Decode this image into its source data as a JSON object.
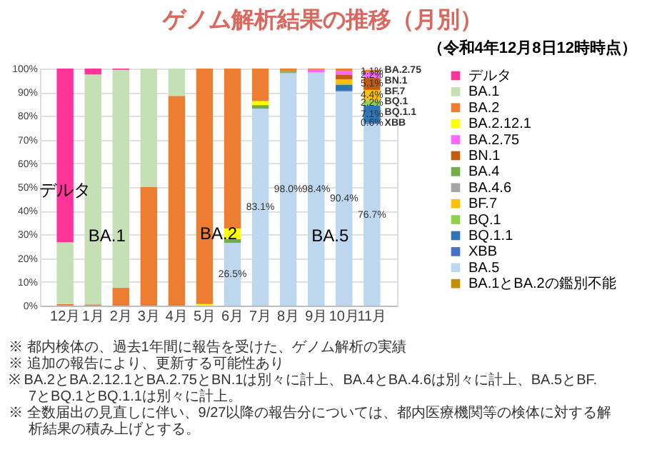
{
  "chart_data": {
    "type": "bar",
    "stacked": true,
    "title": "ゲノム解析結果の推移（月別）",
    "subtitle": "（令和4年12月8日12時時点）",
    "categories": [
      "12月",
      "1月",
      "2月",
      "3月",
      "4月",
      "5月",
      "6月",
      "7月",
      "8月",
      "9月",
      "10月",
      "11月"
    ],
    "ylim": [
      0,
      100
    ],
    "yticks": [
      {
        "value": 0,
        "label": "0%"
      },
      {
        "value": 10,
        "label": "10%"
      },
      {
        "value": 20,
        "label": "20%"
      },
      {
        "value": 30,
        "label": "30%"
      },
      {
        "value": 40,
        "label": "40%"
      },
      {
        "value": 50,
        "label": "50%"
      },
      {
        "value": 60,
        "label": "60%"
      },
      {
        "value": 70,
        "label": "70%"
      },
      {
        "value": 80,
        "label": "80%"
      },
      {
        "value": 90,
        "label": "90%"
      },
      {
        "value": 100,
        "label": "100%"
      }
    ],
    "grid": "y",
    "legend": "right",
    "series": [
      {
        "name": "BA.1とBA.2の鑑別不能",
        "color": "#bf9000",
        "values": [
          null,
          null,
          null,
          null,
          null,
          null,
          null,
          null,
          null,
          null,
          null,
          null
        ]
      },
      {
        "name": "BA.5",
        "color": "#bdd7ee",
        "values": [
          null,
          null,
          null,
          null,
          null,
          null,
          26.5,
          83.1,
          98.0,
          98.4,
          90.4,
          76.7
        ],
        "value_labels": [
          null,
          null,
          null,
          null,
          null,
          null,
          "26.5%",
          "83.1%",
          "98.0%",
          "98.4%",
          "90.4%",
          "76.7%"
        ]
      },
      {
        "name": "XBB",
        "color": "#4472c4",
        "values": [
          null,
          null,
          null,
          null,
          null,
          null,
          null,
          null,
          null,
          null,
          0.3,
          0.6
        ],
        "value_labels": [
          null,
          null,
          null,
          null,
          null,
          null,
          null,
          null,
          null,
          null,
          null,
          "0.6%"
        ]
      },
      {
        "name": "BQ.1.1",
        "color": "#2e75b6",
        "values": [
          null,
          null,
          null,
          null,
          null,
          null,
          null,
          null,
          null,
          null,
          2.5,
          7.1
        ],
        "value_labels": [
          null,
          null,
          null,
          null,
          null,
          null,
          null,
          null,
          null,
          null,
          null,
          "7.1%"
        ]
      },
      {
        "name": "BQ.1",
        "color": "#92d050",
        "values": [
          null,
          null,
          null,
          null,
          null,
          null,
          null,
          null,
          null,
          null,
          0.5,
          2.2
        ],
        "value_labels": [
          null,
          null,
          null,
          null,
          null,
          null,
          null,
          null,
          null,
          null,
          null,
          "2.2%"
        ]
      },
      {
        "name": "BF.7",
        "color": "#ffc000",
        "values": [
          null,
          null,
          null,
          null,
          null,
          null,
          null,
          null,
          null,
          null,
          1.8,
          4.4
        ],
        "value_labels": [
          null,
          null,
          null,
          null,
          null,
          null,
          null,
          null,
          null,
          null,
          null,
          "4.4%"
        ]
      },
      {
        "name": "BA.4.6",
        "color": "#a5a5a5",
        "values": [
          null,
          null,
          null,
          null,
          null,
          null,
          null,
          null,
          0.5,
          null,
          null,
          null
        ]
      },
      {
        "name": "BA.4",
        "color": "#70ad47",
        "values": [
          null,
          null,
          null,
          null,
          null,
          null,
          1.5,
          1.5,
          0.5,
          null,
          null,
          null
        ]
      },
      {
        "name": "BN.1",
        "color": "#c55a11",
        "values": [
          null,
          null,
          null,
          null,
          null,
          null,
          null,
          null,
          null,
          null,
          2.0,
          5.1
        ],
        "value_labels": [
          null,
          null,
          null,
          null,
          null,
          null,
          null,
          null,
          null,
          null,
          null,
          "5.1%"
        ]
      },
      {
        "name": "BA.2.75",
        "color": "#ff66ff",
        "values": [
          null,
          null,
          null,
          null,
          null,
          null,
          null,
          null,
          null,
          1.1,
          1.5,
          2.2
        ],
        "value_labels": [
          null,
          null,
          null,
          null,
          null,
          null,
          null,
          null,
          null,
          null,
          null,
          "2.2%"
        ]
      },
      {
        "name": "BA.2.12.1",
        "color": "#ffff00",
        "values": [
          null,
          null,
          null,
          null,
          null,
          0.7,
          4.5,
          1.7,
          null,
          null,
          null,
          null
        ]
      },
      {
        "name": "BA.2",
        "color": "#ed7d31",
        "values": [
          0.7,
          0.5,
          7.5,
          50,
          88.5,
          99.3,
          67.5,
          13.7,
          1.0,
          0.5,
          1.0,
          1.1
        ],
        "value_labels": [
          null,
          null,
          null,
          null,
          null,
          null,
          null,
          null,
          null,
          null,
          null,
          "1.1%"
        ]
      },
      {
        "name": "BA.1",
        "color": "#c5e0b4",
        "values": [
          26,
          97,
          92,
          50,
          11.5,
          null,
          null,
          null,
          null,
          null,
          null,
          null
        ]
      },
      {
        "name": "デルタ",
        "color": "#ff3399",
        "values": [
          73.3,
          2.5,
          0.5,
          null,
          null,
          null,
          null,
          null,
          null,
          null,
          null,
          null
        ]
      }
    ],
    "annotations": [
      "※ 都内検体の、過去1年間に報告を受けた、ゲノム解析の実績",
      "※ 追加の報告により、更新する可能性あり",
      "※ BA.2とBA.2.12.1とBA.2.75とBN.1は別々に計上、BA.4とBA.4.6は別々に計上、BA.5とBF.7とBQ.1とBQ.1.1は別々に計上。",
      "※ 全数届出の見直しに伴い、9/27以降の報告分については、都内医療機関等の検体に対する解析結果の積み上げとする。"
    ]
  }
}
